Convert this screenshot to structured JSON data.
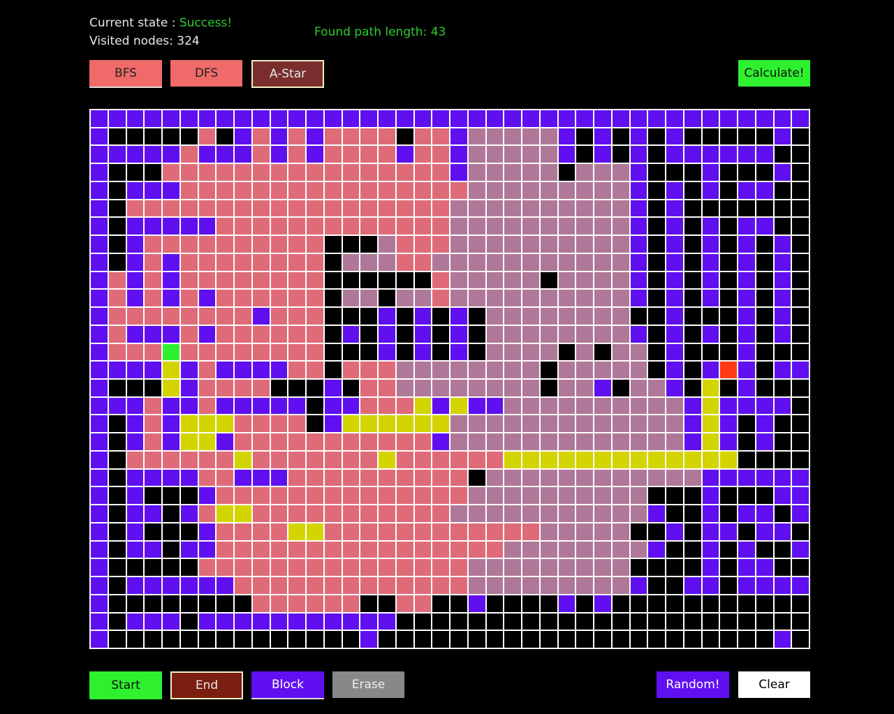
{
  "status": {
    "state_label": "Current state : ",
    "state_value": "Success!",
    "visited_label": "Visited nodes: ",
    "visited_value": "324",
    "path_label": "Found path length: ",
    "path_value": "43"
  },
  "algorithms": {
    "bfs": "BFS",
    "dfs": "DFS",
    "astar": "A-Star",
    "calculate": "Calculate!"
  },
  "tools": {
    "start": "Start",
    "end": "End",
    "block": "Block",
    "erase": "Erase",
    "random": "Random!",
    "clear": "Clear"
  },
  "grid": {
    "cols": 40,
    "rows": 30,
    "legend": {
      "B": "#000000",
      "o": "#6010f0",
      "r": "#e06b78",
      "v": "#b07898",
      "y": "#d4d400",
      "S": "#2ef02e",
      "E": "#ff3a14"
    },
    "cells": [
      "oooooooooooooooooooooooooooooooooooooooo",
      "oBBBBBrBorororrrrBrrovvvvvoBoBoBoBBBBBoB",
      "ooooorooorororrrrorrovvvvvoBoBoBooooooBB",
      "oBBBrrrrrrrrrrrrrrrrovvvvvBvvvoBBBoBBBoB",
      "oBooorrrrrrrrrrrrrrrrvvvvvvvvvoBoBoBooBB",
      "oBrrrrrrrrrrrrrrrrrrvvvvvvvvvvoBoBBBBBBB",
      "oBooooorrrrrrrrrrrrrvvvvvvvvvvoBoBoBooBB",
      "oBorrrrrrrrrrBBBvrrrvvvvvvvvvvoBoBoBoBoB",
      "oBororrrrrrrrBvvvrrvvvvvvvvvvvoBoBoBoBoB",
      "orororrrrrrrrBBBBBBrvvvvvBvvvvoBoBoBoBoB",
      "ororororrrrrrBvvBvvrvvvvvvvvvvoBoBoBoBoB",
      "orrrrrrrrorrrBBBoBoBoBvvvvvvvvBBoBBBoBoB",
      "orooororrrrrrBoBoBoBoBvvvvvvvvoBoBoBoBoB",
      "orrrSrrrrrrrrBBBoBoBoBvvvvBvBvvBoBBBoBBB",
      "ooooyoroooorrBrrrvvvvvvvvBvvvvvBoBoEoBoo",
      "oBBByorrrrBBBoBrrvvvvvvvvBvvoBvvoByBoBBB",
      "ooorooroooooBoorrryoyoovvvvvvvvvvoyooooB",
      "oBoroyyyrrrrBoyyyyyyvvvvvvvvvvvvvoyoBoBB",
      "oBoroyyorrrrrrrrrrrovvvvvvvvvvvvvoyoBoBB",
      "oBrrrrrryrrrrrrryrrrrrryyyyyyyyyyyyyBBBB",
      "oBoooorrooorrrrrrrrrrBvvvvvvvvvvvvoooooo",
      "oBoBBBorrrrrrrrrrrrrrvvvvvvvvvvBBBoBBBoo",
      "oBooBoryyrrrrrrrrrrrvvvvvvvvvvvoBBoBooBo",
      "oBoBBBorrrryyrrrrrrrrrrrrvvvvvBBoBooBooB",
      "oBooBoorrrrrrrrrrrrrrrrvvvvvvvvoBBoBoBBo",
      "oBBBBBrrrrrrrrrrrrrrrvvvvvvvvvBBBBoBooBB",
      "oBoooooorrrrrrrrrrrrrvvvvvvvvvoBBooBoooo",
      "oBBBBBBBBrrrrrrBBrrBBoBBBBoBoBBBBBBBBBBB",
      "oBoooBoooooooooooBBBBBBBBBBBBBBBBBBBBBBB",
      "oBBBBBBBBBBBBBBoBBBBBBBBBBBBBBBBBBBBBBoB"
    ]
  }
}
